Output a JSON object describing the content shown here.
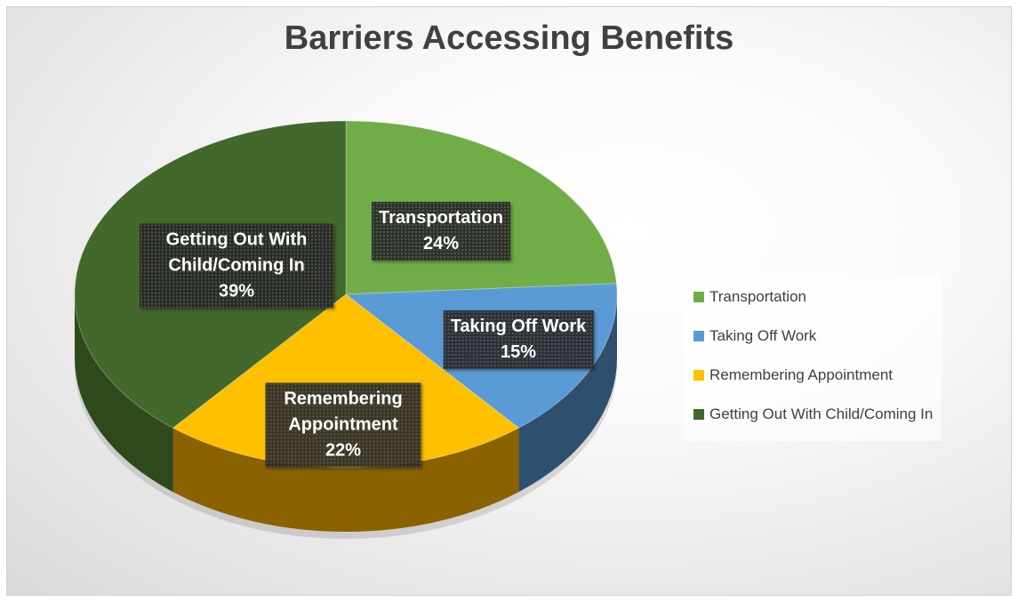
{
  "chart_data": {
    "type": "pie",
    "title": "Barriers Accessing Benefits",
    "categories": [
      "Transportation",
      "Taking Off Work",
      "Remembering Appointment",
      "Getting Out With Child/Coming In"
    ],
    "values": [
      24,
      15,
      22,
      39
    ],
    "value_labels": [
      "24%",
      "15%",
      "22%",
      "39%"
    ],
    "colors": [
      "#70ad47",
      "#5b9bd5",
      "#ffc000",
      "#43682b"
    ],
    "side_colors": [
      "#4e7a31",
      "#2f4f6e",
      "#8a6200",
      "#2e4a1d"
    ],
    "legend": "right"
  }
}
